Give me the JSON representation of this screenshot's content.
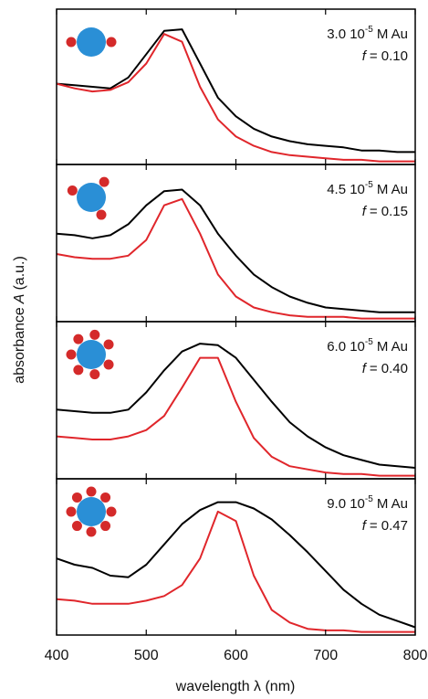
{
  "x_axis_label": "wavelength λ (nm)",
  "y_axis_label": [
    "absorbance",
    "A",
    "(a.u.)"
  ],
  "chart_data": [
    {
      "type": "line",
      "concentration_base": "3.0 10",
      "concentration_exponent": "-5",
      "concentration_unit": "M Au",
      "f_symbol": "f",
      "f_text": "= 0.10",
      "x": [
        400,
        420,
        440,
        460,
        480,
        500,
        520,
        540,
        560,
        580,
        600,
        620,
        640,
        660,
        680,
        700,
        720,
        740,
        760,
        780,
        800
      ],
      "xlim": [
        400,
        800
      ],
      "xticks": [
        400,
        500,
        600,
        700,
        800
      ],
      "ylim": [
        0,
        1
      ],
      "series": [
        {
          "color": "#000000",
          "values": [
            0.52,
            0.51,
            0.5,
            0.49,
            0.56,
            0.71,
            0.86,
            0.87,
            0.65,
            0.43,
            0.31,
            0.23,
            0.18,
            0.15,
            0.13,
            0.12,
            0.11,
            0.09,
            0.09,
            0.08,
            0.08
          ]
        },
        {
          "color": "#e0262b",
          "values": [
            0.52,
            0.49,
            0.47,
            0.48,
            0.53,
            0.65,
            0.84,
            0.79,
            0.5,
            0.29,
            0.18,
            0.12,
            0.08,
            0.06,
            0.05,
            0.04,
            0.03,
            0.03,
            0.02,
            0.02,
            0.02
          ]
        }
      ]
    },
    {
      "type": "line",
      "concentration_base": "4.5 10",
      "concentration_exponent": "-5",
      "concentration_unit": "M Au",
      "f_symbol": "f",
      "f_text": "= 0.15",
      "x": [
        400,
        420,
        440,
        460,
        480,
        500,
        520,
        540,
        560,
        580,
        600,
        620,
        640,
        660,
        680,
        700,
        720,
        740,
        760,
        780,
        800
      ],
      "xlim": [
        400,
        800
      ],
      "xticks": [
        400,
        500,
        600,
        700,
        800
      ],
      "ylim": [
        0,
        1
      ],
      "series": [
        {
          "color": "#000000",
          "values": [
            0.56,
            0.55,
            0.53,
            0.55,
            0.62,
            0.74,
            0.83,
            0.84,
            0.74,
            0.56,
            0.42,
            0.3,
            0.22,
            0.16,
            0.12,
            0.09,
            0.08,
            0.07,
            0.06,
            0.06,
            0.06
          ]
        },
        {
          "color": "#e0262b",
          "values": [
            0.43,
            0.41,
            0.4,
            0.4,
            0.42,
            0.52,
            0.74,
            0.78,
            0.56,
            0.3,
            0.16,
            0.09,
            0.06,
            0.04,
            0.03,
            0.03,
            0.03,
            0.02,
            0.02,
            0.02,
            0.02
          ]
        }
      ]
    },
    {
      "type": "line",
      "concentration_base": "6.0 10",
      "concentration_exponent": "-5",
      "concentration_unit": "M Au",
      "f_symbol": "f",
      "f_text": "= 0.40",
      "x": [
        400,
        420,
        440,
        460,
        480,
        500,
        520,
        540,
        560,
        580,
        600,
        620,
        640,
        660,
        680,
        700,
        720,
        740,
        760,
        780,
        800
      ],
      "xlim": [
        400,
        800
      ],
      "xticks": [
        400,
        500,
        600,
        700,
        800
      ],
      "ylim": [
        0,
        1
      ],
      "series": [
        {
          "color": "#000000",
          "values": [
            0.44,
            0.43,
            0.42,
            0.42,
            0.44,
            0.55,
            0.69,
            0.81,
            0.86,
            0.85,
            0.77,
            0.63,
            0.49,
            0.36,
            0.27,
            0.2,
            0.15,
            0.12,
            0.09,
            0.08,
            0.07
          ]
        },
        {
          "color": "#e0262b",
          "values": [
            0.27,
            0.26,
            0.25,
            0.25,
            0.27,
            0.31,
            0.4,
            0.58,
            0.77,
            0.77,
            0.49,
            0.26,
            0.14,
            0.08,
            0.06,
            0.04,
            0.03,
            0.03,
            0.02,
            0.02,
            0.02
          ]
        }
      ]
    },
    {
      "type": "line",
      "concentration_base": "9.0 10",
      "concentration_exponent": "-5",
      "concentration_unit": "M Au",
      "f_symbol": "f",
      "f_text": "= 0.47",
      "x": [
        400,
        420,
        440,
        460,
        480,
        500,
        520,
        540,
        560,
        580,
        600,
        620,
        640,
        660,
        680,
        700,
        720,
        740,
        760,
        780,
        800
      ],
      "xlim": [
        400,
        800
      ],
      "xticks": [
        400,
        500,
        600,
        700,
        800
      ],
      "ylim": [
        0,
        1
      ],
      "series": [
        {
          "color": "#000000",
          "values": [
            0.49,
            0.45,
            0.43,
            0.38,
            0.37,
            0.45,
            0.58,
            0.71,
            0.8,
            0.85,
            0.85,
            0.81,
            0.74,
            0.64,
            0.53,
            0.41,
            0.29,
            0.2,
            0.13,
            0.09,
            0.05
          ]
        },
        {
          "color": "#e0262b",
          "values": [
            0.23,
            0.22,
            0.2,
            0.2,
            0.2,
            0.22,
            0.25,
            0.32,
            0.49,
            0.79,
            0.73,
            0.38,
            0.16,
            0.08,
            0.04,
            0.03,
            0.03,
            0.02,
            0.02,
            0.02,
            0.02
          ]
        }
      ]
    }
  ]
}
